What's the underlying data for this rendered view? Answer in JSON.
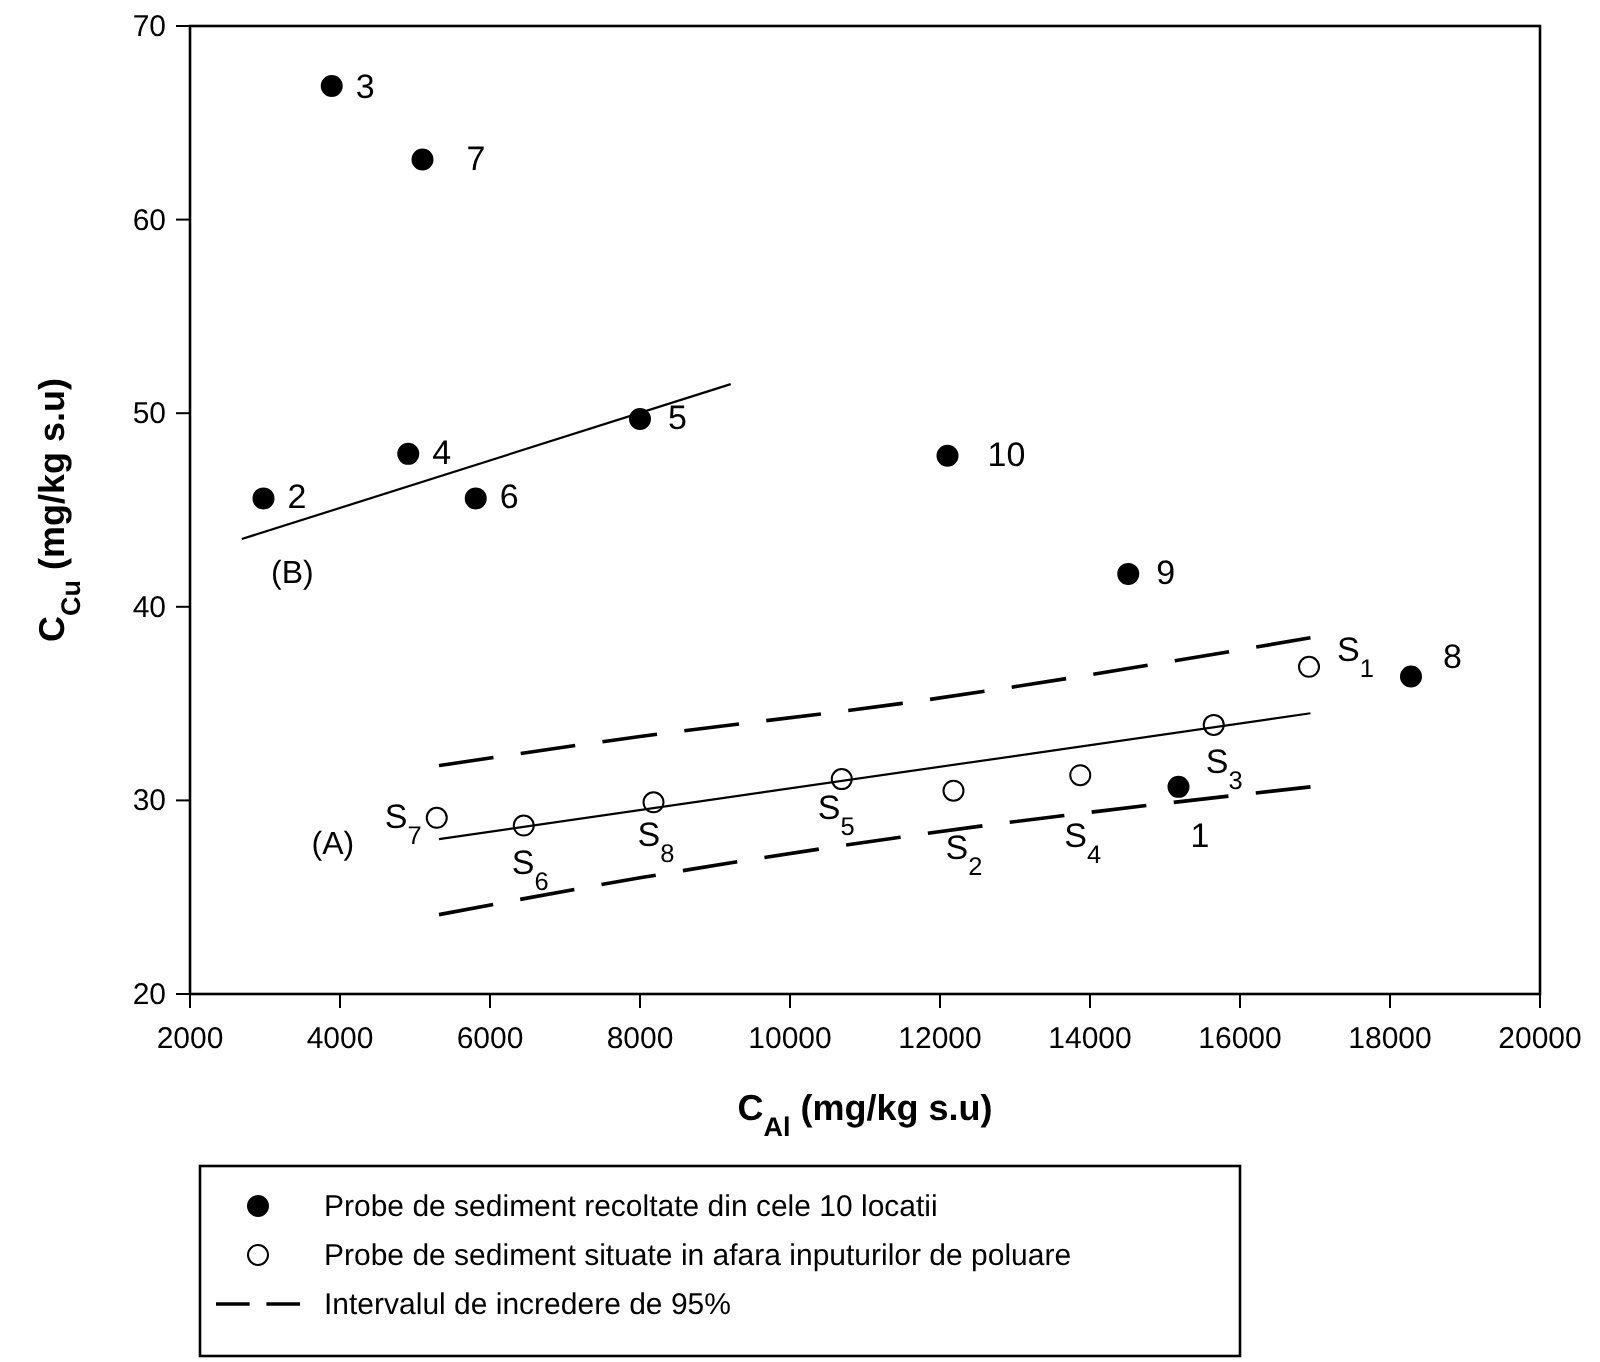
{
  "chart_data": {
    "type": "scatter",
    "xlabel": "C$_{Al}$ (mg/kg s.u)",
    "ylabel": "C$_{Cu}$ (mg/kg s.u)",
    "xlim": [
      2000,
      20000
    ],
    "ylim": [
      20,
      70
    ],
    "xticks": [
      2000,
      4000,
      6000,
      8000,
      10000,
      12000,
      14000,
      16000,
      18000,
      20000
    ],
    "yticks": [
      20,
      30,
      40,
      50,
      60,
      70
    ],
    "grid": false,
    "legend": "bottom",
    "marker": "circle",
    "annotations": [
      "(A)",
      "(B)",
      {
        "text": "1",
        "x": 15180,
        "y": 30.7
      },
      {
        "text": "2",
        "x": 2980,
        "y": 45.6
      },
      {
        "text": "3",
        "x": 3890,
        "y": 66.9
      },
      {
        "text": "4",
        "x": 4910,
        "y": 47.9
      },
      {
        "text": "5",
        "x": 8000,
        "y": 49.7
      },
      {
        "text": "6",
        "x": 5810,
        "y": 45.6
      },
      {
        "text": "7",
        "x": 5100,
        "y": 63.1
      },
      {
        "text": "8",
        "x": 18280,
        "y": 36.4
      },
      {
        "text": "9",
        "x": 14510,
        "y": 41.7
      },
      {
        "text": "10",
        "x": 12100,
        "y": 47.8
      },
      {
        "text": "S$_{1}$",
        "x": 16920,
        "y": 36.9
      },
      {
        "text": "S$_{2}$",
        "x": 12180,
        "y": 30.5
      },
      {
        "text": "S$_{3}$",
        "x": 15650,
        "y": 33.9
      },
      {
        "text": "S$_{4}$",
        "x": 13870,
        "y": 31.3
      },
      {
        "text": "S$_{5}$",
        "x": 10690,
        "y": 31.1
      },
      {
        "text": "S$_{6}$",
        "x": 6450,
        "y": 28.7
      },
      {
        "text": "S$_{7}$",
        "x": 5290,
        "y": 29.1
      },
      {
        "text": "S$_{8}$",
        "x": 8180,
        "y": 29.9
      }
    ],
    "series": [
      {
        "name": "Probe de sediment recoltate din cele 10 locatii",
        "color": "#000000",
        "x": [
          15180,
          2980,
          3890,
          4910,
          8000,
          5810,
          5100,
          18280,
          14510,
          12100
        ],
        "values": [
          30.7,
          45.6,
          66.9,
          47.9,
          49.7,
          45.6,
          63.1,
          36.4,
          41.7,
          47.8
        ]
      },
      {
        "name": "Probe de sediment situate in afara inputurilor de poluare",
        "color": "#ffffff",
        "x": [
          16920,
          12180,
          15650,
          13870,
          10690,
          6450,
          5290,
          8180
        ],
        "values": [
          36.9,
          30.5,
          33.9,
          31.3,
          31.1,
          28.7,
          29.1,
          29.9
        ]
      },
      {
        "name": "Intervalul de incredere de 95%",
        "type": "line",
        "marker": "none",
        "line_style": "dashed",
        "color": "#000000",
        "x": [
          5320,
          8000,
          11470,
          16940
        ],
        "values": [
          31.8,
          33.3,
          35.0,
          38.4
        ]
      },
      {
        "type": "line",
        "marker": "none",
        "line_style": "dashed",
        "color": "#000000",
        "x": [
          5320,
          8000,
          11470,
          16940
        ],
        "values": [
          24.1,
          26.0,
          28.1,
          30.7
        ]
      },
      {
        "type": "line",
        "marker": "none",
        "line_style": "solid",
        "color": "#000000",
        "x": [
          5320,
          16940
        ],
        "values": [
          28.0,
          34.5
        ]
      },
      {
        "type": "line",
        "marker": "none",
        "line_style": "solid",
        "color": "#000000",
        "x": [
          2690,
          9210
        ],
        "values": [
          43.5,
          51.5
        ]
      }
    ]
  }
}
